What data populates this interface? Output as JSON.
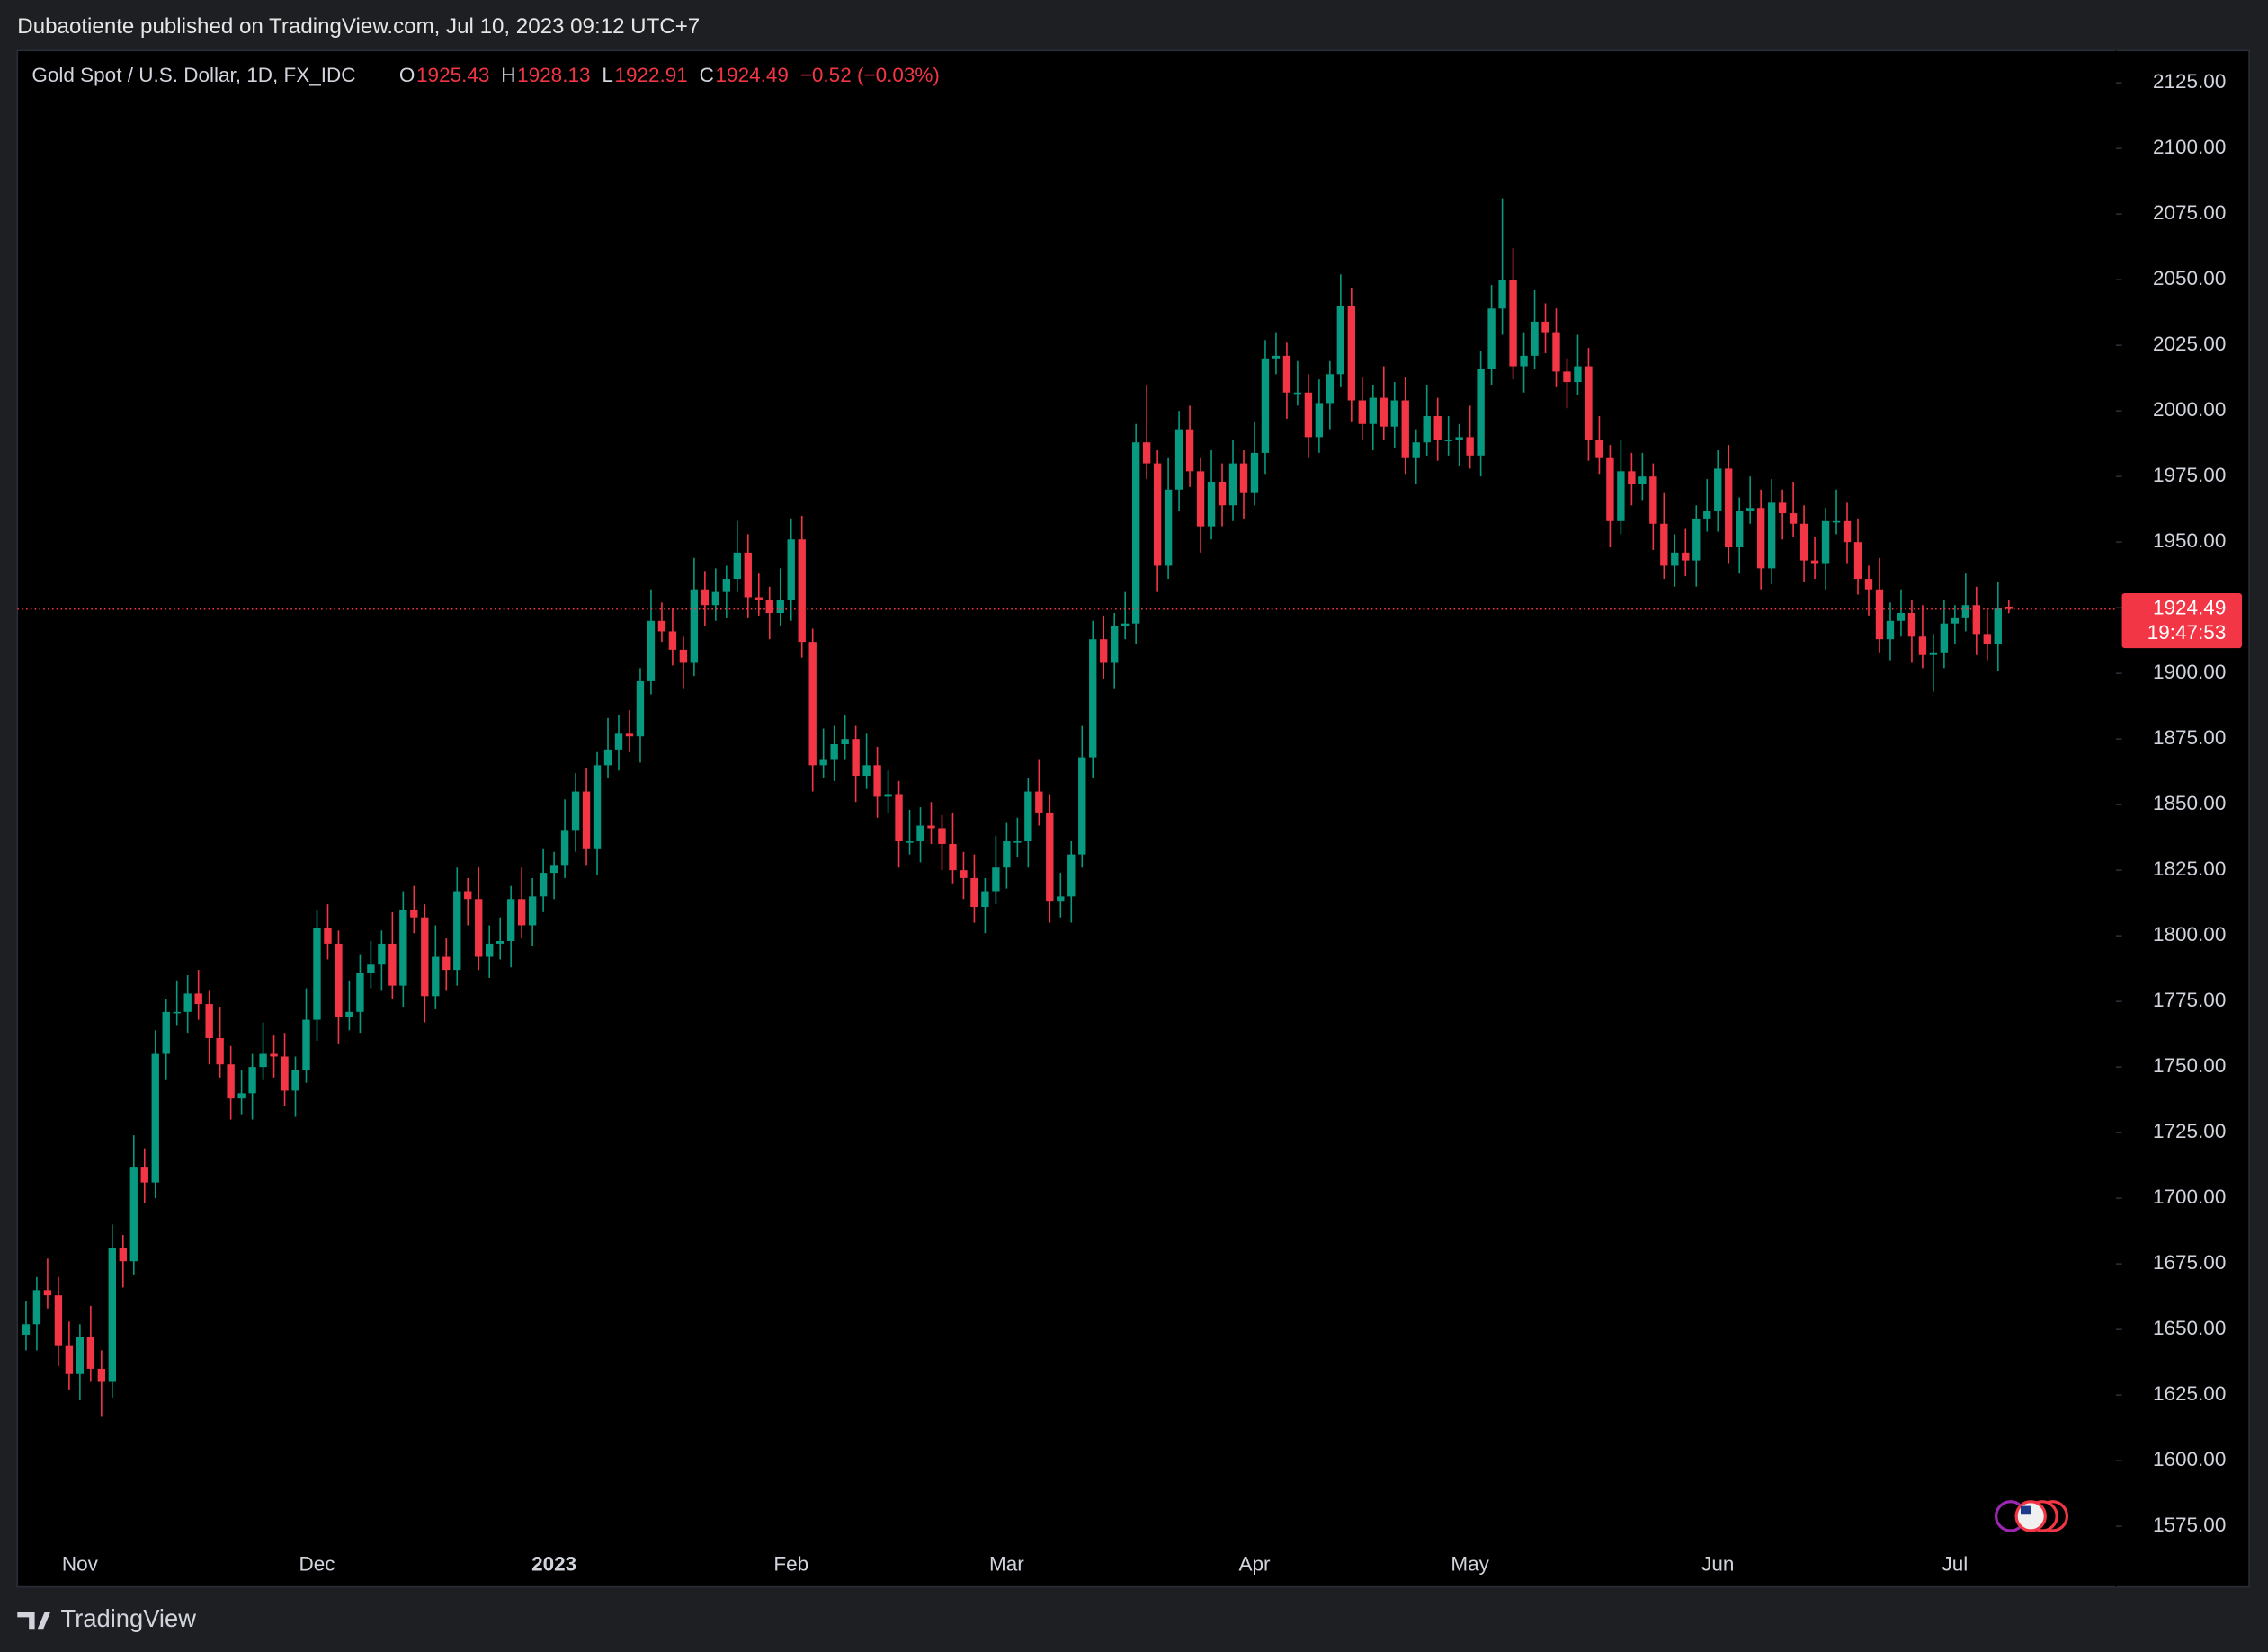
{
  "header": "Dubaotiente published on TradingView.com, Jul 10, 2023 09:12 UTC+7",
  "footer_brand": "TradingView",
  "chart_data": {
    "type": "candlestick",
    "title": "Gold Spot / U.S. Dollar, 1D, FX_IDC",
    "legend_letters": [
      "O",
      "H",
      "L",
      "C"
    ],
    "change": "−0.52 (−0.03%)",
    "countdown": "19:47:53",
    "up_color": "#089981",
    "down_color": "#f23645",
    "ylim": [
      1568.4,
      2137.3
    ],
    "yticks": [
      {
        "value": 1575,
        "label": "1575.00"
      },
      {
        "value": 1600,
        "label": "1600.00"
      },
      {
        "value": 1625,
        "label": "1625.00"
      },
      {
        "value": 1650,
        "label": "1650.00"
      },
      {
        "value": 1675,
        "label": "1675.00"
      },
      {
        "value": 1700,
        "label": "1700.00"
      },
      {
        "value": 1725,
        "label": "1725.00"
      },
      {
        "value": 1750,
        "label": "1750.00"
      },
      {
        "value": 1775,
        "label": "1775.00"
      },
      {
        "value": 1800,
        "label": "1800.00"
      },
      {
        "value": 1825,
        "label": "1825.00"
      },
      {
        "value": 1850,
        "label": "1850.00"
      },
      {
        "value": 1875,
        "label": "1875.00"
      },
      {
        "value": 1900,
        "label": "1900.00"
      },
      {
        "value": 1925,
        "label": "1925.00"
      },
      {
        "value": 1950,
        "label": "1950.00"
      },
      {
        "value": 1975,
        "label": "1975.00"
      },
      {
        "value": 2000,
        "label": "2000.00"
      },
      {
        "value": 2025,
        "label": "2025.00"
      },
      {
        "value": 2050,
        "label": "2050.00"
      },
      {
        "value": 2075,
        "label": "2075.00"
      },
      {
        "value": 2100,
        "label": "2100.00"
      },
      {
        "value": 2125,
        "label": "2125.00"
      }
    ],
    "categories": [
      null,
      null,
      null,
      null,
      null,
      "Nov",
      null,
      null,
      null,
      null,
      null,
      null,
      null,
      null,
      null,
      null,
      null,
      null,
      null,
      null,
      null,
      null,
      null,
      null,
      null,
      null,
      null,
      "Dec",
      null,
      null,
      null,
      null,
      null,
      null,
      null,
      null,
      null,
      null,
      null,
      null,
      null,
      null,
      null,
      null,
      null,
      null,
      null,
      null,
      null,
      "2023",
      null,
      null,
      null,
      null,
      null,
      null,
      null,
      null,
      null,
      null,
      null,
      null,
      null,
      null,
      null,
      null,
      null,
      null,
      null,
      null,
      null,
      "Feb",
      null,
      null,
      null,
      null,
      null,
      null,
      null,
      null,
      null,
      null,
      null,
      null,
      null,
      null,
      null,
      null,
      null,
      null,
      null,
      "Mar",
      null,
      null,
      null,
      null,
      null,
      null,
      null,
      null,
      null,
      null,
      null,
      null,
      null,
      null,
      null,
      null,
      null,
      null,
      null,
      null,
      null,
      null,
      "Apr",
      null,
      null,
      null,
      null,
      null,
      null,
      null,
      null,
      null,
      null,
      null,
      null,
      null,
      null,
      null,
      null,
      null,
      null,
      null,
      "May",
      null,
      null,
      null,
      null,
      null,
      null,
      null,
      null,
      null,
      null,
      null,
      null,
      null,
      null,
      null,
      null,
      null,
      null,
      null,
      null,
      null,
      null,
      "Jun",
      null,
      null,
      null,
      null,
      null,
      null,
      null,
      null,
      null,
      null,
      null,
      null,
      null,
      null,
      null,
      null,
      null,
      null,
      null,
      null,
      null,
      "Jul",
      null,
      null,
      null,
      null,
      null
    ],
    "open": [
      1648,
      1652,
      1665,
      1663,
      1644,
      1633,
      1647,
      1635,
      1630,
      1681,
      1676,
      1712,
      1706,
      1755,
      1771,
      1771,
      1778,
      1774,
      1761,
      1751,
      1738,
      1740,
      1750,
      1755,
      1754,
      1741,
      1749,
      1768,
      1803,
      1797,
      1769,
      1771,
      1786,
      1789,
      1797,
      1781,
      1810,
      1807,
      1777,
      1792,
      1787,
      1817,
      1814,
      1792,
      1797,
      1798,
      1814,
      1804,
      1815,
      1824,
      1827,
      1840,
      1855,
      1833,
      1865,
      1871,
      1877,
      1876,
      1897,
      1920,
      1916,
      1909,
      1904,
      1932,
      1926,
      1931,
      1936,
      1946,
      1929,
      1928,
      1923,
      1928,
      1951,
      1912,
      1865,
      1867,
      1873,
      1875,
      1861,
      1865,
      1853,
      1854,
      1836,
      1836,
      1842,
      1841,
      1835,
      1825,
      1822,
      1811,
      1817,
      1826,
      1836,
      1836,
      1855,
      1847,
      1813,
      1815,
      1831,
      1868,
      1913,
      1904,
      1918,
      1919,
      1988,
      1980,
      1941,
      1970,
      1993,
      1977,
      1956,
      1973,
      1964,
      1980,
      1969,
      1984,
      2020,
      2021,
      2007,
      2007,
      1990,
      2003,
      2014,
      2040,
      2004,
      1995,
      2005,
      1994,
      2004,
      1982,
      1988,
      1998,
      1989,
      1989,
      1990,
      1983,
      2016,
      2039,
      2050,
      2017,
      2021,
      2034,
      2030,
      2015,
      2011,
      2017,
      1989,
      1982,
      1958,
      1977,
      1972,
      1975,
      1957,
      1941,
      1946,
      1943,
      1959,
      1962,
      1978,
      1948,
      1962,
      1963,
      1940,
      1965,
      1961,
      1957,
      1943,
      1942,
      1958,
      1958,
      1950,
      1936,
      1932,
      1913,
      1920,
      1923,
      1914,
      1907,
      1908,
      1919,
      1921,
      1926,
      1915,
      1911,
      1925.43
    ],
    "high": [
      1661,
      1670,
      1677,
      1670,
      1653,
      1652,
      1659,
      1642,
      1690,
      1686,
      1724,
      1719,
      1764,
      1776,
      1783,
      1785,
      1787,
      1779,
      1773,
      1758,
      1749,
      1755,
      1767,
      1762,
      1763,
      1754,
      1780,
      1810,
      1812,
      1802,
      1783,
      1793,
      1798,
      1802,
      1809,
      1817,
      1819,
      1812,
      1804,
      1799,
      1826,
      1822,
      1826,
      1804,
      1807,
      1819,
      1826,
      1822,
      1833,
      1832,
      1852,
      1862,
      1864,
      1870,
      1883,
      1884,
      1886,
      1902,
      1932,
      1927,
      1925,
      1914,
      1944,
      1939,
      1940,
      1941,
      1958,
      1953,
      1938,
      1933,
      1940,
      1959,
      1960,
      1917,
      1879,
      1880,
      1884,
      1880,
      1877,
      1872,
      1863,
      1859,
      1848,
      1849,
      1851,
      1846,
      1847,
      1832,
      1831,
      1822,
      1838,
      1843,
      1845,
      1860,
      1867,
      1854,
      1824,
      1836,
      1880,
      1920,
      1922,
      1923,
      1931,
      1995,
      2010,
      1985,
      1982,
      2000,
      2002,
      1982,
      1985,
      1980,
      1989,
      1985,
      1996,
      2027,
      2030,
      2026,
      2019,
      2014,
      2012,
      2019,
      2052,
      2047,
      2013,
      2010,
      2017,
      2011,
      2013,
      1993,
      2010,
      2005,
      1998,
      1995,
      2002,
      2023,
      2048,
      2081,
      2062,
      2030,
      2046,
      2041,
      2039,
      2020,
      2029,
      2024,
      1998,
      1987,
      1989,
      1984,
      1984,
      1980,
      1969,
      1953,
      1955,
      1964,
      1974,
      1985,
      1987,
      1967,
      1975,
      1970,
      1974,
      1970,
      1973,
      1964,
      1952,
      1963,
      1970,
      1965,
      1959,
      1941,
      1944,
      1927,
      1932,
      1928,
      1926,
      1915,
      1928,
      1926,
      1938,
      1933,
      1924,
      1935,
      1928.13
    ],
    "low": [
      1642,
      1642,
      1658,
      1636,
      1627,
      1623,
      1630,
      1617,
      1624,
      1666,
      1671,
      1698,
      1700,
      1745,
      1766,
      1763,
      1768,
      1751,
      1746,
      1730,
      1732,
      1730,
      1745,
      1746,
      1735,
      1731,
      1744,
      1760,
      1791,
      1759,
      1764,
      1763,
      1780,
      1779,
      1776,
      1773,
      1801,
      1767,
      1772,
      1779,
      1781,
      1804,
      1787,
      1784,
      1791,
      1788,
      1799,
      1796,
      1809,
      1814,
      1822,
      1832,
      1827,
      1823,
      1860,
      1863,
      1870,
      1866,
      1892,
      1912,
      1903,
      1894,
      1899,
      1918,
      1920,
      1921,
      1931,
      1921,
      1922,
      1913,
      1918,
      1920,
      1906,
      1855,
      1860,
      1859,
      1867,
      1851,
      1856,
      1845,
      1847,
      1826,
      1831,
      1828,
      1835,
      1825,
      1820,
      1814,
      1805,
      1801,
      1812,
      1818,
      1830,
      1826,
      1842,
      1805,
      1807,
      1805,
      1826,
      1860,
      1898,
      1894,
      1913,
      1911,
      1974,
      1931,
      1936,
      1962,
      1971,
      1946,
      1951,
      1956,
      1958,
      1959,
      1964,
      1976,
      2014,
      1997,
      2002,
      1982,
      1984,
      1993,
      2009,
      1996,
      1989,
      1985,
      1989,
      1986,
      1976,
      1972,
      1983,
      1981,
      1983,
      1979,
      1978,
      1975,
      2010,
      2029,
      2012,
      2007,
      2016,
      2022,
      2009,
      2001,
      2006,
      1981,
      1976,
      1948,
      1953,
      1964,
      1966,
      1947,
      1936,
      1933,
      1937,
      1933,
      1954,
      1954,
      1942,
      1938,
      1957,
      1932,
      1934,
      1951,
      1952,
      1935,
      1936,
      1932,
      1953,
      1942,
      1930,
      1922,
      1908,
      1905,
      1914,
      1904,
      1902,
      1893,
      1902,
      1911,
      1916,
      1907,
      1905,
      1901,
      1922.91
    ],
    "close": [
      1652,
      1665,
      1663,
      1644,
      1633,
      1647,
      1635,
      1630,
      1681,
      1676,
      1712,
      1706,
      1755,
      1771,
      1771,
      1778,
      1774,
      1761,
      1751,
      1738,
      1740,
      1750,
      1755,
      1754,
      1741,
      1749,
      1768,
      1803,
      1797,
      1769,
      1771,
      1786,
      1789,
      1797,
      1781,
      1810,
      1807,
      1777,
      1792,
      1787,
      1817,
      1814,
      1792,
      1797,
      1798,
      1814,
      1804,
      1815,
      1824,
      1827,
      1840,
      1855,
      1833,
      1865,
      1871,
      1877,
      1876,
      1897,
      1920,
      1916,
      1909,
      1904,
      1932,
      1926,
      1931,
      1936,
      1946,
      1929,
      1928,
      1923,
      1928,
      1951,
      1912,
      1865,
      1867,
      1873,
      1875,
      1861,
      1865,
      1853,
      1854,
      1836,
      1836,
      1842,
      1841,
      1835,
      1825,
      1822,
      1811,
      1817,
      1826,
      1836,
      1836,
      1855,
      1847,
      1813,
      1815,
      1831,
      1868,
      1913,
      1904,
      1918,
      1919,
      1988,
      1980,
      1941,
      1970,
      1993,
      1977,
      1956,
      1973,
      1964,
      1980,
      1969,
      1984,
      2020,
      2021,
      2007,
      2007,
      1990,
      2003,
      2014,
      2040,
      2004,
      1995,
      2005,
      1994,
      2004,
      1982,
      1988,
      1998,
      1989,
      1989,
      1990,
      1983,
      2016,
      2039,
      2050,
      2017,
      2021,
      2034,
      2030,
      2015,
      2011,
      2017,
      1989,
      1982,
      1958,
      1977,
      1972,
      1975,
      1957,
      1941,
      1946,
      1943,
      1959,
      1962,
      1978,
      1948,
      1962,
      1963,
      1940,
      1965,
      1961,
      1957,
      1943,
      1942,
      1958,
      1958,
      1950,
      1936,
      1932,
      1913,
      1920,
      1923,
      1914,
      1907,
      1908,
      1919,
      1921,
      1926,
      1915,
      1911,
      1925,
      1924.49
    ]
  }
}
